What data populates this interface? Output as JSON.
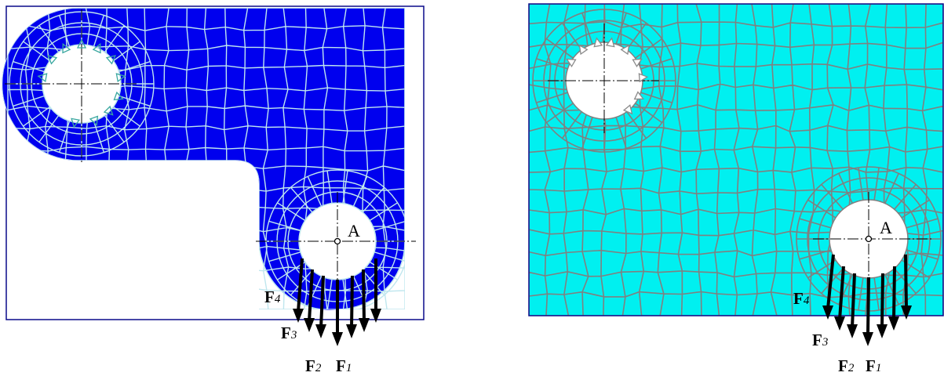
{
  "left_panel": {
    "point_label": "A",
    "forces": [
      {
        "symbol": "F",
        "subscript": "4"
      },
      {
        "symbol": "F",
        "subscript": "3"
      },
      {
        "symbol": "F",
        "subscript": "2"
      },
      {
        "symbol": "F",
        "subscript": "1"
      }
    ]
  },
  "right_panel": {
    "point_label": "A",
    "forces": [
      {
        "symbol": "F",
        "subscript": "4"
      },
      {
        "symbol": "F",
        "subscript": "3"
      },
      {
        "symbol": "F",
        "subscript": "2"
      },
      {
        "symbol": "F",
        "subscript": "1"
      }
    ]
  },
  "colors": {
    "left_mesh_fill": "#0000ee",
    "left_mesh_lines": "#bfe6ee",
    "left_constraint_marker": "#3aa7a0",
    "right_mesh_fill": "#00f0f0",
    "right_mesh_lines": "#808080",
    "right_constraint_marker": "#8a8a8a",
    "frame": "#0a0a8a",
    "force_arrow": "#000000"
  }
}
